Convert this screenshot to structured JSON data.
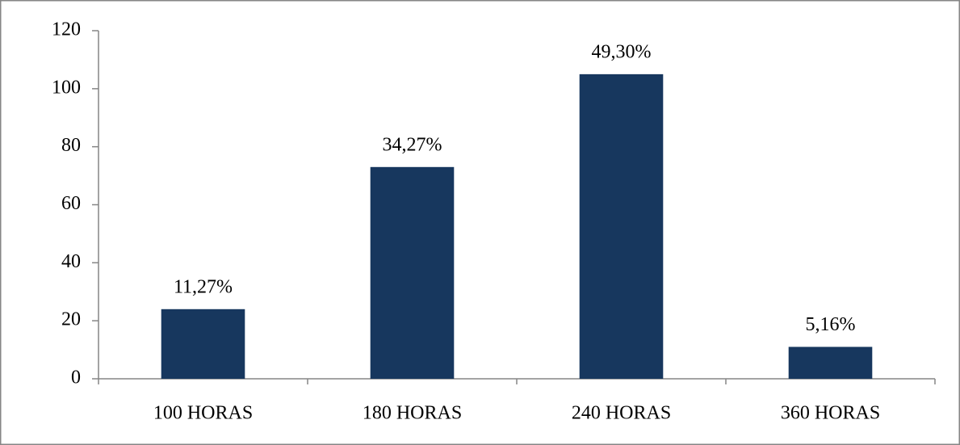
{
  "chart_data": {
    "type": "bar",
    "categories": [
      "100 HORAS",
      "180 HORAS",
      "240 HORAS",
      "360 HORAS"
    ],
    "values": [
      24,
      73,
      105,
      11
    ],
    "value_labels": [
      "11,27%",
      "34,27%",
      "49,30%",
      "5,16%"
    ],
    "color": "#17375e",
    "ylim": [
      0,
      120
    ],
    "yticks": [
      0,
      20,
      40,
      60,
      80,
      100,
      120
    ],
    "grid": false
  }
}
